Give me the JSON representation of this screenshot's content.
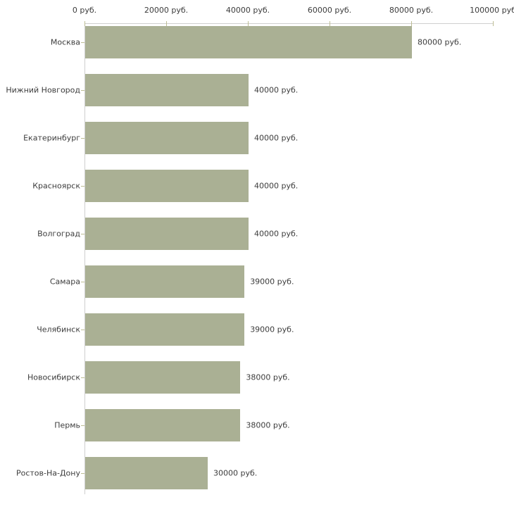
{
  "chart_data": {
    "type": "bar",
    "orientation": "horizontal",
    "title": "",
    "xlabel": "",
    "ylabel": "",
    "xlim": [
      0,
      100000
    ],
    "grid": false,
    "legend": false,
    "categories": [
      "Москва",
      "Нижний Новгород",
      "Екатеринбург",
      "Красноярск",
      "Волгоград",
      "Самара",
      "Челябинск",
      "Новосибирск",
      "Пермь",
      "Ростов-На-Дону"
    ],
    "values": [
      80000,
      40000,
      40000,
      40000,
      40000,
      39000,
      39000,
      38000,
      38000,
      30000
    ],
    "value_labels": [
      "80000 руб.",
      "40000 руб.",
      "40000 руб.",
      "40000 руб.",
      "40000 руб.",
      "39000 руб.",
      "39000 руб.",
      "38000 руб.",
      "38000 руб.",
      "30000 руб."
    ],
    "x_ticks": [
      {
        "value": 0,
        "label": "0 руб."
      },
      {
        "value": 20000,
        "label": "20000 руб."
      },
      {
        "value": 40000,
        "label": "40000 руб."
      },
      {
        "value": 60000,
        "label": "60000 руб."
      },
      {
        "value": 80000,
        "label": "80000 руб."
      },
      {
        "value": 100000,
        "label": "100000 руб"
      }
    ],
    "colors": {
      "bar": "#aab094",
      "axis_line": "#cfcfcf",
      "tick_mark": "#bdbd94",
      "text": "#3c3c3c",
      "background": "#ffffff"
    }
  }
}
